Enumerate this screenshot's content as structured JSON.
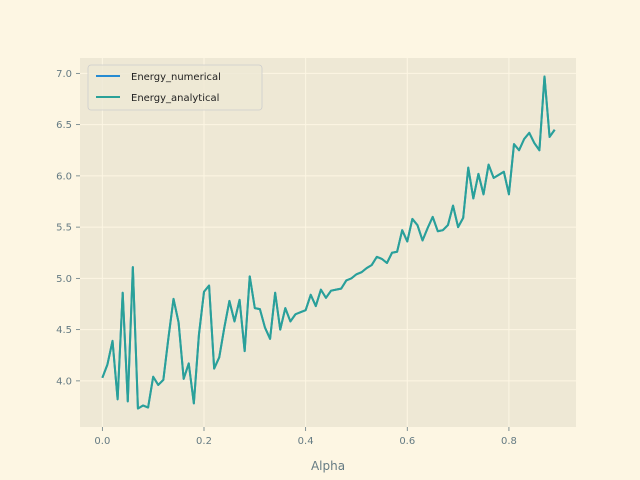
{
  "chart_data": {
    "type": "line",
    "xlabel": "Alpha",
    "ylabel": "",
    "title": "",
    "xlim": [
      -0.044,
      0.932
    ],
    "ylim": [
      3.55,
      7.15
    ],
    "xticks": [
      0.0,
      0.2,
      0.4,
      0.6,
      0.8
    ],
    "xtick_labels": [
      "0.0",
      "0.2",
      "0.4",
      "0.6",
      "0.8"
    ],
    "yticks": [
      4.0,
      4.5,
      5.0,
      5.5,
      6.0,
      6.5,
      7.0
    ],
    "ytick_labels": [
      "4.0",
      "4.5",
      "5.0",
      "5.5",
      "6.0",
      "6.5",
      "7.0"
    ],
    "grid": true,
    "legend_position": "top-left",
    "x": [
      0.0,
      0.01,
      0.02,
      0.03,
      0.04,
      0.05,
      0.06,
      0.07,
      0.08,
      0.09,
      0.1,
      0.11,
      0.12,
      0.13,
      0.14,
      0.15,
      0.16,
      0.17,
      0.18,
      0.19,
      0.2,
      0.21,
      0.22,
      0.23,
      0.24,
      0.25,
      0.26,
      0.27,
      0.28,
      0.29,
      0.3,
      0.31,
      0.32,
      0.33,
      0.34,
      0.35,
      0.36,
      0.37,
      0.38,
      0.39,
      0.4,
      0.41,
      0.42,
      0.43,
      0.44,
      0.45,
      0.46,
      0.47,
      0.48,
      0.49,
      0.5,
      0.51,
      0.52,
      0.53,
      0.54,
      0.55,
      0.56,
      0.57,
      0.58,
      0.59,
      0.6,
      0.61,
      0.62,
      0.63,
      0.64,
      0.65,
      0.66,
      0.67,
      0.68,
      0.69,
      0.7,
      0.71,
      0.72,
      0.73,
      0.74,
      0.75,
      0.76,
      0.77,
      0.78,
      0.79,
      0.8,
      0.81,
      0.82,
      0.83,
      0.84,
      0.85,
      0.86,
      0.87,
      0.88,
      0.89
    ],
    "series": [
      {
        "name": "Energy_numerical",
        "color": "#268bd2",
        "values": [
          4.03,
          4.16,
          4.39,
          3.82,
          4.86,
          3.8,
          5.11,
          3.73,
          3.76,
          3.74,
          4.04,
          3.96,
          4.01,
          4.42,
          4.8,
          4.57,
          4.02,
          4.17,
          3.78,
          4.45,
          4.87,
          4.93,
          4.12,
          4.23,
          4.52,
          4.78,
          4.58,
          4.79,
          4.29,
          5.02,
          4.71,
          4.7,
          4.52,
          4.41,
          4.86,
          4.5,
          4.71,
          4.58,
          4.65,
          4.67,
          4.69,
          4.84,
          4.73,
          4.89,
          4.81,
          4.88,
          4.89,
          4.9,
          4.98,
          5.0,
          5.04,
          5.06,
          5.1,
          5.13,
          5.21,
          5.19,
          5.15,
          5.25,
          5.26,
          5.47,
          5.36,
          5.58,
          5.52,
          5.37,
          5.49,
          5.6,
          5.46,
          5.47,
          5.52,
          5.71,
          5.5,
          5.59,
          6.08,
          5.78,
          6.02,
          5.82,
          6.11,
          5.98,
          6.01,
          6.04,
          5.82,
          6.31,
          6.25,
          6.36,
          6.42,
          6.32,
          6.25,
          6.97,
          6.38,
          6.45
        ]
      },
      {
        "name": "Energy_analytical",
        "color": "#2aa198",
        "values": [
          4.03,
          4.16,
          4.39,
          3.82,
          4.86,
          3.8,
          5.11,
          3.73,
          3.76,
          3.74,
          4.04,
          3.96,
          4.01,
          4.42,
          4.8,
          4.57,
          4.02,
          4.17,
          3.78,
          4.45,
          4.87,
          4.93,
          4.12,
          4.23,
          4.52,
          4.78,
          4.58,
          4.79,
          4.29,
          5.02,
          4.71,
          4.7,
          4.52,
          4.41,
          4.86,
          4.5,
          4.71,
          4.58,
          4.65,
          4.67,
          4.69,
          4.84,
          4.73,
          4.89,
          4.81,
          4.88,
          4.89,
          4.9,
          4.98,
          5.0,
          5.04,
          5.06,
          5.1,
          5.13,
          5.21,
          5.19,
          5.15,
          5.25,
          5.26,
          5.47,
          5.36,
          5.58,
          5.52,
          5.37,
          5.49,
          5.6,
          5.46,
          5.47,
          5.52,
          5.71,
          5.5,
          5.59,
          6.08,
          5.78,
          6.02,
          5.82,
          6.11,
          5.98,
          6.01,
          6.04,
          5.82,
          6.31,
          6.25,
          6.36,
          6.42,
          6.32,
          6.25,
          6.97,
          6.38,
          6.45
        ]
      }
    ]
  },
  "colors": {
    "figure_bg": "#fdf6e3",
    "axes_bg": "#eee8d5",
    "grid": "#fdf6e3",
    "text": "#657b83"
  }
}
